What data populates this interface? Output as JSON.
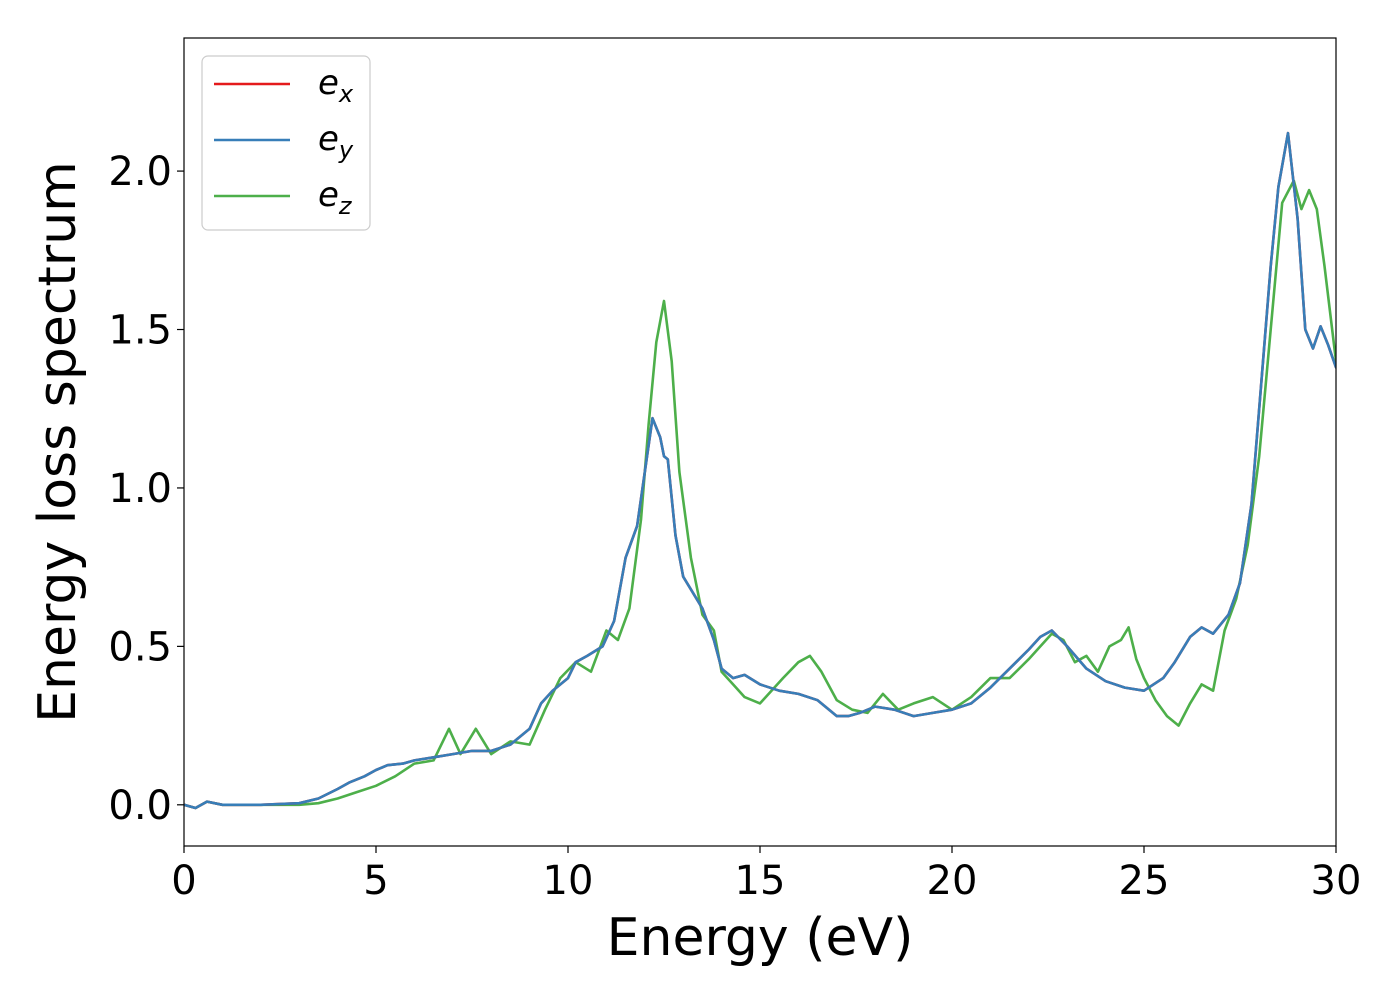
{
  "chart_data": {
    "type": "line",
    "title": "",
    "xlabel": "Energy (eV)",
    "ylabel": "Energy loss spectrum",
    "xlim": [
      0,
      30
    ],
    "ylim": [
      -0.13,
      2.42
    ],
    "xticks": [
      0,
      5,
      10,
      15,
      20,
      25,
      30
    ],
    "xtick_labels": [
      "0",
      "5",
      "10",
      "15",
      "20",
      "25",
      "30"
    ],
    "yticks": [
      0.0,
      0.5,
      1.0,
      1.5,
      2.0
    ],
    "ytick_labels": [
      "0.0",
      "0.5",
      "1.0",
      "1.5",
      "2.0"
    ],
    "grid": false,
    "legend_position": "top-left",
    "series": [
      {
        "name": "e_x",
        "legend_base": "e",
        "legend_sub": "x",
        "color": "#e41a1c",
        "x": [
          0,
          0.3,
          0.6,
          1,
          2,
          3,
          3.5,
          4,
          4.3,
          4.7,
          5,
          5.3,
          5.7,
          6,
          6.5,
          7,
          7.5,
          8,
          8.5,
          9,
          9.3,
          9.6,
          10,
          10.2,
          10.5,
          10.9,
          11.2,
          11.5,
          11.8,
          12,
          12.2,
          12.4,
          12.5,
          12.6,
          12.8,
          13,
          13.3,
          13.5,
          13.8,
          14,
          14.3,
          14.6,
          15,
          15.5,
          16,
          16.5,
          17,
          17.3,
          17.6,
          18,
          18.5,
          19,
          19.5,
          20,
          20.5,
          21,
          21.5,
          22,
          22.3,
          22.6,
          23,
          23.5,
          24,
          24.5,
          25,
          25.5,
          25.8,
          26.2,
          26.5,
          26.8,
          27.2,
          27.5,
          27.8,
          28,
          28.3,
          28.5,
          28.75,
          29,
          29.2,
          29.4,
          29.6,
          29.8,
          30
        ],
        "y": [
          0.0,
          -0.01,
          0.01,
          0.0,
          0.0,
          0.005,
          0.02,
          0.05,
          0.07,
          0.09,
          0.11,
          0.125,
          0.13,
          0.14,
          0.15,
          0.16,
          0.17,
          0.17,
          0.19,
          0.24,
          0.32,
          0.36,
          0.4,
          0.45,
          0.47,
          0.5,
          0.58,
          0.78,
          0.88,
          1.05,
          1.22,
          1.16,
          1.1,
          1.09,
          0.85,
          0.72,
          0.66,
          0.62,
          0.52,
          0.43,
          0.4,
          0.41,
          0.38,
          0.36,
          0.35,
          0.33,
          0.28,
          0.28,
          0.29,
          0.31,
          0.3,
          0.28,
          0.29,
          0.3,
          0.32,
          0.37,
          0.43,
          0.49,
          0.53,
          0.55,
          0.5,
          0.43,
          0.39,
          0.37,
          0.36,
          0.4,
          0.45,
          0.53,
          0.56,
          0.54,
          0.6,
          0.7,
          0.95,
          1.25,
          1.7,
          1.95,
          2.12,
          1.85,
          1.5,
          1.44,
          1.51,
          1.45,
          1.38
        ]
      },
      {
        "name": "e_y",
        "legend_base": "e",
        "legend_sub": "y",
        "color": "#377eb8",
        "x": [
          0,
          0.3,
          0.6,
          1,
          2,
          3,
          3.5,
          4,
          4.3,
          4.7,
          5,
          5.3,
          5.7,
          6,
          6.5,
          7,
          7.5,
          8,
          8.5,
          9,
          9.3,
          9.6,
          10,
          10.2,
          10.5,
          10.9,
          11.2,
          11.5,
          11.8,
          12,
          12.2,
          12.4,
          12.5,
          12.6,
          12.8,
          13,
          13.3,
          13.5,
          13.8,
          14,
          14.3,
          14.6,
          15,
          15.5,
          16,
          16.5,
          17,
          17.3,
          17.6,
          18,
          18.5,
          19,
          19.5,
          20,
          20.5,
          21,
          21.5,
          22,
          22.3,
          22.6,
          23,
          23.5,
          24,
          24.5,
          25,
          25.5,
          25.8,
          26.2,
          26.5,
          26.8,
          27.2,
          27.5,
          27.8,
          28,
          28.3,
          28.5,
          28.75,
          29,
          29.2,
          29.4,
          29.6,
          29.8,
          30
        ],
        "y": [
          0.0,
          -0.01,
          0.01,
          0.0,
          0.0,
          0.005,
          0.02,
          0.05,
          0.07,
          0.09,
          0.11,
          0.125,
          0.13,
          0.14,
          0.15,
          0.16,
          0.17,
          0.17,
          0.19,
          0.24,
          0.32,
          0.36,
          0.4,
          0.45,
          0.47,
          0.5,
          0.58,
          0.78,
          0.88,
          1.05,
          1.22,
          1.16,
          1.1,
          1.09,
          0.85,
          0.72,
          0.66,
          0.62,
          0.52,
          0.43,
          0.4,
          0.41,
          0.38,
          0.36,
          0.35,
          0.33,
          0.28,
          0.28,
          0.29,
          0.31,
          0.3,
          0.28,
          0.29,
          0.3,
          0.32,
          0.37,
          0.43,
          0.49,
          0.53,
          0.55,
          0.5,
          0.43,
          0.39,
          0.37,
          0.36,
          0.4,
          0.45,
          0.53,
          0.56,
          0.54,
          0.6,
          0.7,
          0.95,
          1.25,
          1.7,
          1.95,
          2.12,
          1.85,
          1.5,
          1.44,
          1.51,
          1.45,
          1.38
        ]
      },
      {
        "name": "e_z",
        "legend_base": "e",
        "legend_sub": "z",
        "color": "#4daf4a",
        "x": [
          0,
          0.3,
          0.6,
          1,
          2,
          3,
          3.5,
          4,
          4.5,
          5,
          5.5,
          6,
          6.5,
          6.9,
          7.2,
          7.6,
          8,
          8.5,
          9,
          9.4,
          9.8,
          10.2,
          10.6,
          11,
          11.3,
          11.6,
          11.9,
          12.1,
          12.3,
          12.5,
          12.7,
          12.9,
          13.2,
          13.5,
          13.8,
          14,
          14.3,
          14.6,
          15,
          15.3,
          15.6,
          16,
          16.3,
          16.6,
          17,
          17.4,
          17.8,
          18.2,
          18.6,
          19,
          19.5,
          20,
          20.5,
          21,
          21.5,
          22,
          22.3,
          22.6,
          22.9,
          23.2,
          23.5,
          23.8,
          24.1,
          24.4,
          24.6,
          24.8,
          25,
          25.3,
          25.6,
          25.9,
          26.2,
          26.5,
          26.8,
          27.1,
          27.4,
          27.7,
          28,
          28.3,
          28.6,
          28.9,
          29.1,
          29.3,
          29.5,
          29.7,
          30
        ],
        "y": [
          0.0,
          -0.01,
          0.01,
          0.0,
          0.0,
          0.0,
          0.005,
          0.02,
          0.04,
          0.06,
          0.09,
          0.13,
          0.14,
          0.24,
          0.16,
          0.24,
          0.16,
          0.2,
          0.19,
          0.3,
          0.4,
          0.45,
          0.42,
          0.55,
          0.52,
          0.62,
          0.9,
          1.2,
          1.46,
          1.59,
          1.4,
          1.05,
          0.78,
          0.6,
          0.55,
          0.42,
          0.38,
          0.34,
          0.32,
          0.36,
          0.4,
          0.45,
          0.47,
          0.42,
          0.33,
          0.3,
          0.29,
          0.35,
          0.3,
          0.32,
          0.34,
          0.3,
          0.34,
          0.4,
          0.4,
          0.46,
          0.5,
          0.54,
          0.52,
          0.45,
          0.47,
          0.42,
          0.5,
          0.52,
          0.56,
          0.46,
          0.4,
          0.33,
          0.28,
          0.25,
          0.32,
          0.38,
          0.36,
          0.55,
          0.65,
          0.82,
          1.1,
          1.5,
          1.9,
          1.97,
          1.88,
          1.94,
          1.88,
          1.7,
          1.4
        ]
      }
    ]
  }
}
